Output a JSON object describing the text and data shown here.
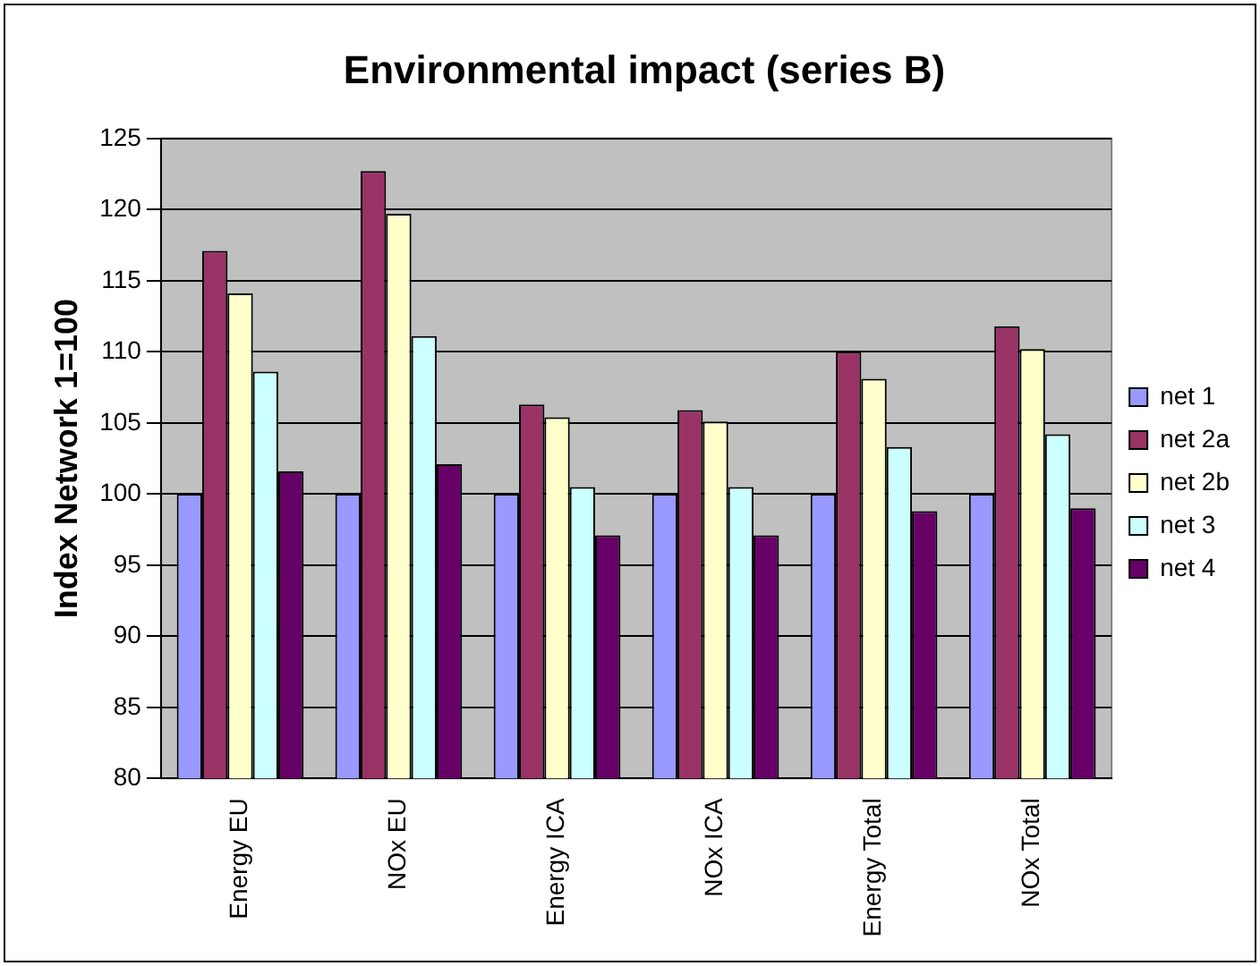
{
  "chart_data": {
    "type": "bar",
    "title": "Environmental impact (series B)",
    "ylabel": "Index Network 1=100",
    "categories": [
      "Energy EU",
      "NOx EU",
      "Energy ICA",
      "NOx ICA",
      "Energy Total",
      "NOx Total"
    ],
    "series": [
      {
        "name": "net 1",
        "color": "#9999ff",
        "values": [
          100,
          100,
          100,
          100,
          100,
          100
        ]
      },
      {
        "name": "net 2a",
        "color": "#993366",
        "values": [
          117.1,
          122.7,
          106.3,
          105.9,
          110.0,
          111.8
        ]
      },
      {
        "name": "net 2b",
        "color": "#ffffcc",
        "values": [
          114.1,
          119.7,
          105.4,
          105.1,
          108.1,
          110.2
        ]
      },
      {
        "name": "net 3",
        "color": "#ccffff",
        "values": [
          108.6,
          111.1,
          100.5,
          100.5,
          103.3,
          104.2
        ]
      },
      {
        "name": "net 4",
        "color": "#660066",
        "values": [
          101.6,
          102.1,
          97.1,
          97.1,
          98.8,
          99.0
        ]
      }
    ],
    "ylim": [
      80,
      125
    ],
    "yticks": [
      80,
      85,
      90,
      95,
      100,
      105,
      110,
      115,
      120,
      125
    ],
    "grid": "y",
    "legend": "right"
  }
}
